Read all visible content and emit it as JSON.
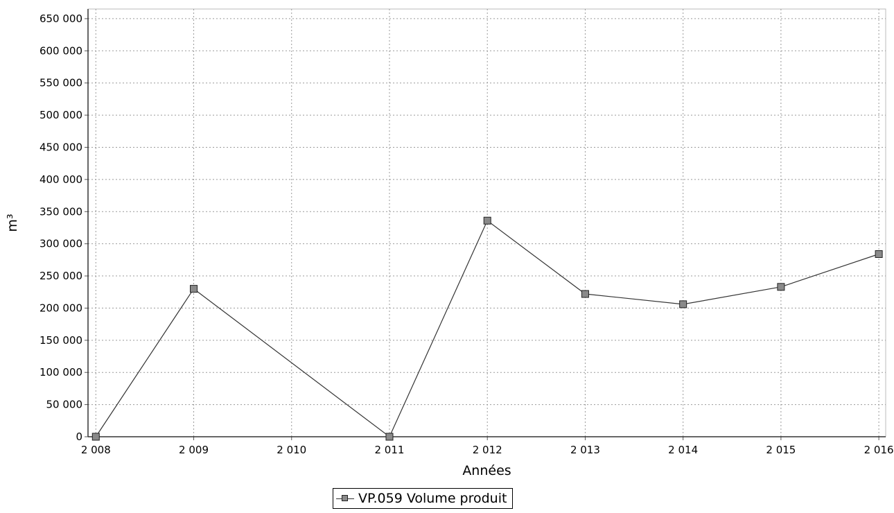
{
  "chart_data": {
    "type": "line",
    "title": "",
    "xlabel": "Années",
    "ylabel": "m³",
    "x": [
      "2 008",
      "2 009",
      "2 010",
      "2 011",
      "2 012",
      "2 013",
      "2 014",
      "2 015",
      "2 016"
    ],
    "x_values": [
      2008,
      2009,
      2010,
      2011,
      2012,
      2013,
      2014,
      2015,
      2016
    ],
    "xlim": [
      2007.92,
      2016.07
    ],
    "ylim": [
      0,
      665000
    ],
    "y_ticks": [
      0,
      50000,
      100000,
      150000,
      200000,
      250000,
      300000,
      350000,
      400000,
      450000,
      500000,
      550000,
      600000,
      650000
    ],
    "y_tick_labels": [
      "0",
      "50 000",
      "100 000",
      "150 000",
      "200 000",
      "250 000",
      "300 000",
      "350 000",
      "400 000",
      "450 000",
      "500 000",
      "550 000",
      "600 000",
      "650 000"
    ],
    "series": [
      {
        "name": "VP.059 Volume produit",
        "x": [
          2008,
          2009,
          2011,
          2012,
          2013,
          2014,
          2015,
          2016
        ],
        "values": [
          0,
          230000,
          0,
          336000,
          222000,
          206000,
          233000,
          284000
        ],
        "color": "#8a8a8a"
      }
    ],
    "grid": true,
    "legend_position": "bottom-center"
  }
}
